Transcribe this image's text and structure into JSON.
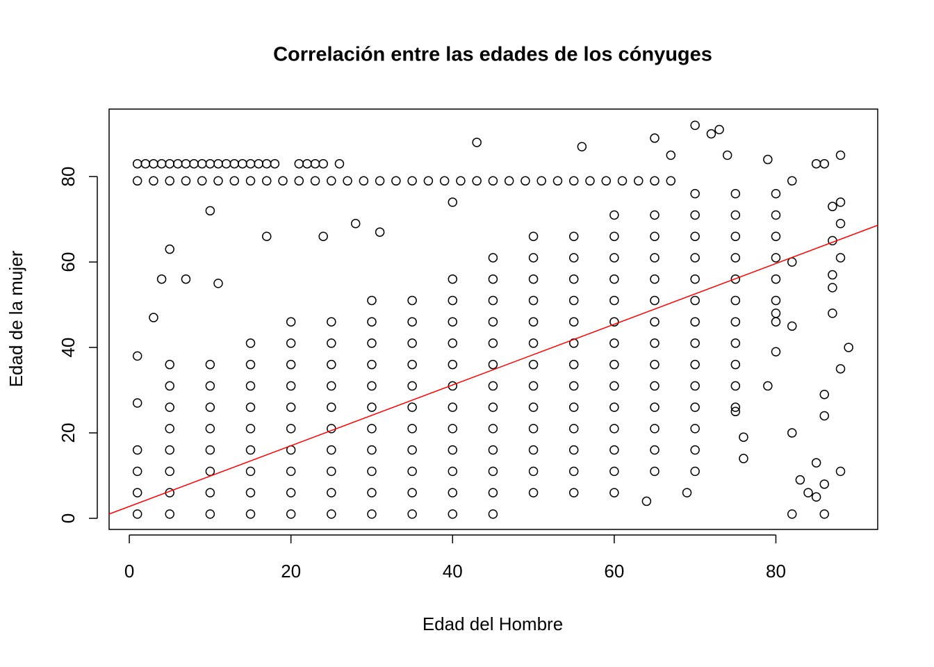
{
  "chart_data": {
    "type": "scatter",
    "title": "Correlación entre las edades de los cónyuges",
    "x_label": "Edad del Hombre",
    "y_label": "Edad de la mujer",
    "color": "#000000",
    "x": [
      1,
      1,
      1,
      1,
      5,
      5,
      5,
      5,
      5,
      5,
      5,
      5,
      10,
      10,
      10,
      10,
      10,
      10,
      10,
      10,
      15,
      15,
      15,
      15,
      15,
      15,
      15,
      15,
      15,
      20,
      20,
      20,
      20,
      20,
      20,
      20,
      20,
      20,
      20,
      25,
      25,
      25,
      25,
      25,
      25,
      25,
      25,
      25,
      25,
      30,
      30,
      30,
      30,
      30,
      30,
      30,
      30,
      30,
      30,
      30,
      35,
      35,
      35,
      35,
      35,
      35,
      35,
      35,
      35,
      35,
      35,
      40,
      40,
      40,
      40,
      40,
      40,
      40,
      40,
      40,
      40,
      40,
      40,
      45,
      45,
      45,
      45,
      45,
      45,
      45,
      45,
      45,
      45,
      45,
      45,
      45,
      50,
      50,
      50,
      50,
      50,
      50,
      50,
      50,
      50,
      50,
      50,
      50,
      50,
      55,
      55,
      55,
      55,
      55,
      55,
      55,
      55,
      55,
      55,
      55,
      55,
      55,
      60,
      60,
      60,
      60,
      60,
      60,
      60,
      60,
      60,
      60,
      60,
      60,
      60,
      60,
      65,
      65,
      65,
      65,
      65,
      65,
      65,
      65,
      65,
      65,
      65,
      65,
      65,
      70,
      70,
      70,
      70,
      70,
      70,
      70,
      70,
      70,
      70,
      70,
      70,
      70,
      70,
      75,
      75,
      75,
      75,
      75,
      75,
      75,
      75,
      75,
      75,
      75,
      80,
      80,
      80,
      80,
      80,
      80,
      80,
      1,
      2,
      3,
      4,
      5,
      6,
      7,
      8,
      9,
      10,
      11,
      12,
      13,
      14,
      15,
      16,
      17,
      18,
      21,
      22,
      23,
      24,
      26,
      1,
      3,
      5,
      7,
      9,
      11,
      13,
      15,
      17,
      19,
      21,
      23,
      25,
      27,
      29,
      31,
      33,
      35,
      37,
      39,
      41,
      43,
      45,
      47,
      49,
      51,
      53,
      55,
      57,
      59,
      61,
      63,
      65,
      67,
      43,
      56,
      70,
      73,
      65,
      72,
      88,
      85,
      86,
      82,
      89,
      88,
      88,
      86,
      86,
      10,
      5,
      17,
      24,
      31,
      28,
      40,
      1,
      1,
      3,
      4,
      7,
      11,
      88,
      87,
      88,
      87,
      88,
      87,
      87,
      87,
      85,
      83,
      84,
      69,
      64,
      76,
      76,
      75,
      79,
      80,
      80,
      82,
      82,
      82,
      82,
      86,
      86,
      85,
      67,
      79,
      74
    ],
    "values": [
      1,
      6,
      11,
      16,
      1,
      6,
      11,
      16,
      21,
      26,
      31,
      36,
      1,
      6,
      11,
      16,
      21,
      26,
      31,
      36,
      1,
      6,
      11,
      16,
      21,
      26,
      31,
      36,
      41,
      1,
      6,
      11,
      16,
      21,
      26,
      31,
      36,
      41,
      46,
      1,
      6,
      11,
      16,
      21,
      26,
      31,
      36,
      41,
      46,
      1,
      6,
      11,
      16,
      21,
      26,
      31,
      36,
      41,
      46,
      51,
      1,
      6,
      11,
      16,
      21,
      26,
      31,
      36,
      41,
      46,
      51,
      1,
      6,
      11,
      16,
      21,
      26,
      31,
      36,
      41,
      46,
      51,
      56,
      1,
      6,
      11,
      16,
      21,
      26,
      31,
      36,
      41,
      46,
      51,
      56,
      61,
      6,
      11,
      16,
      21,
      26,
      31,
      36,
      41,
      46,
      51,
      56,
      61,
      66,
      6,
      11,
      16,
      21,
      26,
      31,
      36,
      41,
      46,
      51,
      56,
      61,
      66,
      6,
      11,
      16,
      21,
      26,
      31,
      36,
      41,
      46,
      51,
      56,
      61,
      66,
      71,
      11,
      16,
      21,
      26,
      31,
      36,
      41,
      46,
      51,
      56,
      61,
      66,
      71,
      11,
      16,
      21,
      26,
      31,
      36,
      41,
      46,
      51,
      56,
      61,
      66,
      71,
      76,
      26,
      31,
      36,
      41,
      46,
      51,
      56,
      61,
      66,
      71,
      76,
      46,
      51,
      56,
      61,
      66,
      71,
      76,
      83,
      83,
      83,
      83,
      83,
      83,
      83,
      83,
      83,
      83,
      83,
      83,
      83,
      83,
      83,
      83,
      83,
      83,
      83,
      83,
      83,
      83,
      83,
      79,
      79,
      79,
      79,
      79,
      79,
      79,
      79,
      79,
      79,
      79,
      79,
      79,
      79,
      79,
      79,
      79,
      79,
      79,
      79,
      79,
      79,
      79,
      79,
      79,
      79,
      79,
      79,
      79,
      79,
      79,
      79,
      79,
      79,
      88,
      87,
      92,
      91,
      89,
      90,
      85,
      83,
      83,
      79,
      40,
      35,
      11,
      29,
      24,
      72,
      63,
      66,
      66,
      67,
      69,
      74,
      38,
      27,
      47,
      56,
      56,
      55,
      74,
      73,
      69,
      65,
      61,
      57,
      54,
      48,
      13,
      9,
      6,
      6,
      4,
      14,
      19,
      25,
      31,
      39,
      48,
      1,
      20,
      45,
      60,
      1,
      8,
      5,
      85,
      84,
      85
    ],
    "fit_line": {
      "color": "#ff0000",
      "x": [
        -2.5,
        92.6
      ],
      "values": [
        1,
        68.6
      ]
    },
    "xlim": [
      -2.5,
      92.6
    ],
    "xticks": [
      0,
      20,
      40,
      60,
      80
    ],
    "ylim": [
      -2.6,
      95.8
    ],
    "yticks": [
      0,
      20,
      40,
      60,
      80
    ]
  }
}
